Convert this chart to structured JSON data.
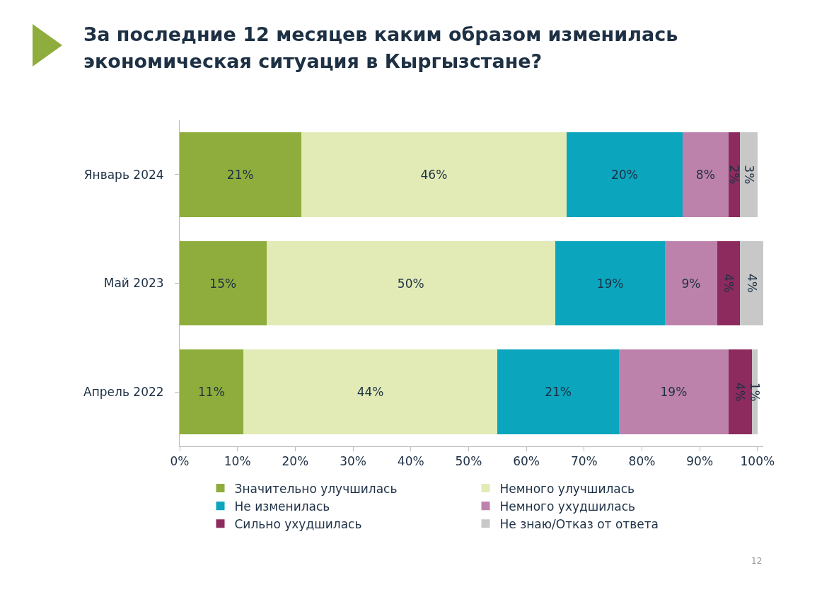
{
  "chart_data": {
    "type": "bar",
    "orientation": "horizontal",
    "stacked": true,
    "title": "За последние 12 месяцев каким образом изменилась экономическая ситуация в Кыргызстане?",
    "categories": [
      "Январь 2024",
      "Май 2023",
      "Апрель 2022"
    ],
    "series": [
      {
        "name": "Значительно улучшилась",
        "color": "#8fad3c",
        "values": [
          21,
          15,
          11
        ],
        "value_labels": [
          "21%",
          "15%",
          "11%"
        ]
      },
      {
        "name": "Немного улучшилась",
        "color": "#e2ebb6",
        "values": [
          46,
          50,
          44
        ],
        "value_labels": [
          "46%",
          "50%",
          "44%"
        ]
      },
      {
        "name": "Не изменилась",
        "color": "#0ba5be",
        "values": [
          20,
          19,
          21
        ],
        "value_labels": [
          "20%",
          "19%",
          "21%"
        ]
      },
      {
        "name": "Немного ухудшилась",
        "color": "#bd82ab",
        "values": [
          8,
          9,
          19
        ],
        "value_labels": [
          "8%",
          "9%",
          "19%"
        ]
      },
      {
        "name": "Сильно ухудшилась",
        "color": "#8e2b5e",
        "values": [
          2,
          4,
          4
        ],
        "value_labels": [
          "2%",
          "4%",
          "4%"
        ]
      },
      {
        "name": "Не знаю/Отказ от ответа",
        "color": "#c8c8c8",
        "values": [
          3,
          4,
          1
        ],
        "value_labels": [
          "3%",
          "4%",
          "1%"
        ]
      }
    ],
    "xlim": [
      0,
      101
    ],
    "xticks": [
      {
        "value": 0,
        "label": "0%"
      },
      {
        "value": 10,
        "label": "10%"
      },
      {
        "value": 20,
        "label": "20%"
      },
      {
        "value": 30,
        "label": "30%"
      },
      {
        "value": 40,
        "label": "40%"
      },
      {
        "value": 50,
        "label": "50%"
      },
      {
        "value": 60,
        "label": "60%"
      },
      {
        "value": 70,
        "label": "70%"
      },
      {
        "value": 80,
        "label": "80%"
      },
      {
        "value": 90,
        "label": "90%"
      },
      {
        "value": 100,
        "label": "100%"
      }
    ],
    "grid": false,
    "legend": "bottom",
    "annotations": [
      "12"
    ]
  }
}
